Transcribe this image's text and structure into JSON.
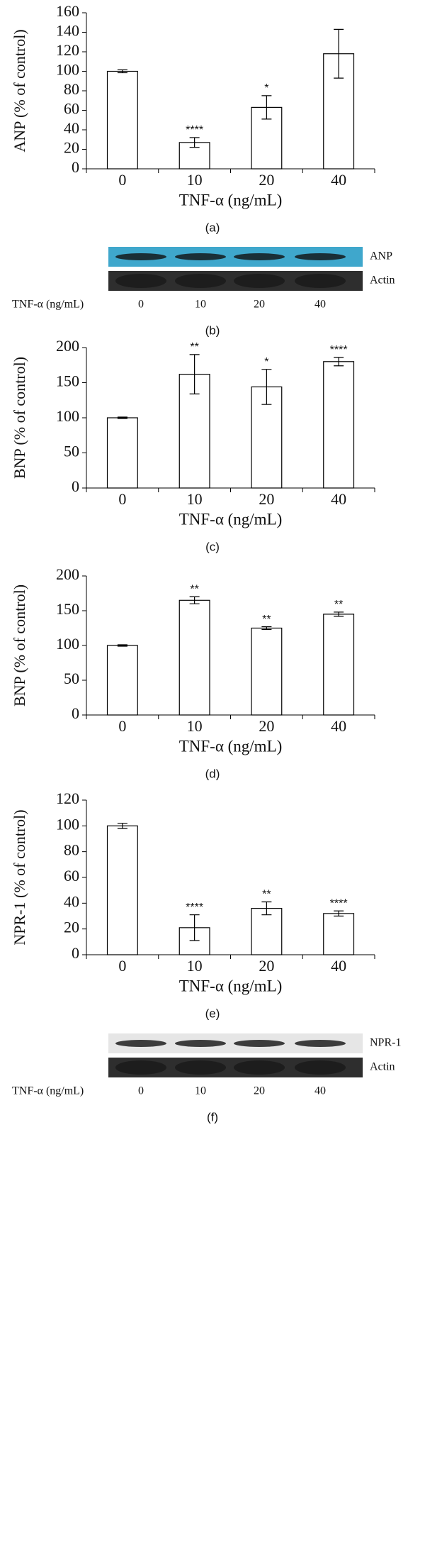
{
  "chart_data": [
    {
      "type": "bar",
      "y_label": "ANP (% of control)",
      "x_label": "TNF-α (ng/mL)",
      "caption": "(a)",
      "categories": [
        "0",
        "10",
        "20",
        "40"
      ],
      "values": [
        100,
        27,
        63,
        118
      ],
      "errors": [
        1.5,
        5,
        12,
        25
      ],
      "annotations": [
        null,
        "****",
        "*",
        null
      ],
      "color": "#ffffff",
      "ylim": [
        0,
        160
      ],
      "yticks": [
        0,
        20,
        40,
        60,
        80,
        100,
        120,
        140,
        160
      ]
    },
    {
      "type": "blot",
      "bands": [
        {
          "label": "ANP",
          "color": "#3fa7cc"
        },
        {
          "label": "Actin",
          "color": "#2e2e2e"
        }
      ],
      "x_label": "TNF-α (ng/mL)",
      "lanes": [
        "0",
        "10",
        "20",
        "40"
      ],
      "caption": "(b)"
    },
    {
      "type": "bar",
      "y_label": "BNP (% of control)",
      "x_label": "TNF-α (ng/mL)",
      "caption": "(c)",
      "categories": [
        "0",
        "10",
        "20",
        "40"
      ],
      "values": [
        100,
        162,
        144,
        180
      ],
      "errors": [
        1,
        28,
        25,
        6
      ],
      "annotations": [
        null,
        "**",
        "*",
        "****"
      ],
      "color": "#ffffff",
      "ylim": [
        0,
        200
      ],
      "yticks": [
        0,
        50,
        100,
        150,
        200
      ]
    },
    {
      "type": "bar",
      "y_label": "BNP (% of control)",
      "x_label": "TNF-α (ng/mL)",
      "caption": "(d)",
      "categories": [
        "0",
        "10",
        "20",
        "40"
      ],
      "values": [
        100,
        165,
        125,
        145
      ],
      "errors": [
        1,
        5,
        2,
        3
      ],
      "annotations": [
        null,
        "**",
        "**",
        "**"
      ],
      "color": "#ffffff",
      "ylim": [
        0,
        200
      ],
      "yticks": [
        0,
        50,
        100,
        150,
        200
      ]
    },
    {
      "type": "bar",
      "y_label": "NPR-1 (% of control)",
      "x_label": "TNF-α (ng/mL)",
      "caption": "(e)",
      "categories": [
        "0",
        "10",
        "20",
        "40"
      ],
      "values": [
        100,
        21,
        36,
        32
      ],
      "errors": [
        2,
        10,
        5,
        2
      ],
      "annotations": [
        null,
        "****",
        "**",
        "****"
      ],
      "color": "#ffffff",
      "ylim": [
        0,
        120
      ],
      "yticks": [
        0,
        20,
        40,
        60,
        80,
        100,
        120
      ]
    },
    {
      "type": "blot",
      "bands": [
        {
          "label": "NPR-1",
          "color": "#e6e6e6"
        },
        {
          "label": "Actin",
          "color": "#2e2e2e"
        }
      ],
      "x_label": "TNF-α (ng/mL)",
      "lanes": [
        "0",
        "10",
        "20",
        "40"
      ],
      "caption": "(f)"
    }
  ]
}
